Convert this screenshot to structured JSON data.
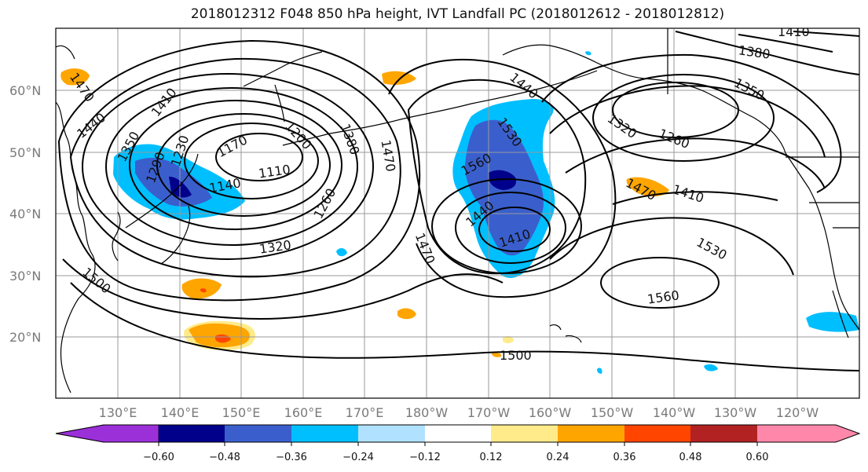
{
  "title": "2018012312 F048 850 hPa height, IVT Landfall PC (2018012612 - 2018012812)",
  "latitude_labels": [
    "60°N",
    "50°N",
    "40°N",
    "30°N",
    "20°N"
  ],
  "longitude_labels": [
    "130°E",
    "140°E",
    "150°E",
    "160°E",
    "170°E",
    "180°W",
    "170°W",
    "160°W",
    "150°W",
    "140°W",
    "130°W",
    "120°W"
  ],
  "contour_labels": [
    "1470",
    "1410",
    "1440",
    "1350",
    "1290",
    "1230",
    "1170",
    "1110",
    "1140",
    "1200",
    "1260",
    "1380",
    "1320",
    "1470",
    "1500",
    "1440",
    "1560",
    "1530",
    "1410",
    "1440",
    "1470",
    "1380",
    "1350",
    "1260",
    "1320",
    "1470",
    "1410",
    "1530",
    "1560",
    "1500",
    "1410"
  ],
  "colorbar": {
    "tick_labels": [
      "−0.60",
      "−0.48",
      "−0.36",
      "−0.24",
      "−0.12",
      "0.12",
      "0.24",
      "0.36",
      "0.48",
      "0.60"
    ],
    "colors": [
      "#9b30d9",
      "#00008b",
      "#3a5fcd",
      "#00bfff",
      "#b0e2ff",
      "#ffffff",
      "#ffeb8a",
      "#ffa500",
      "#ff4500",
      "#b22222",
      "#ff88aa"
    ]
  },
  "map_colors": {
    "grid": "#9a9a9a",
    "contour": "#000000",
    "coast": "#000000"
  }
}
